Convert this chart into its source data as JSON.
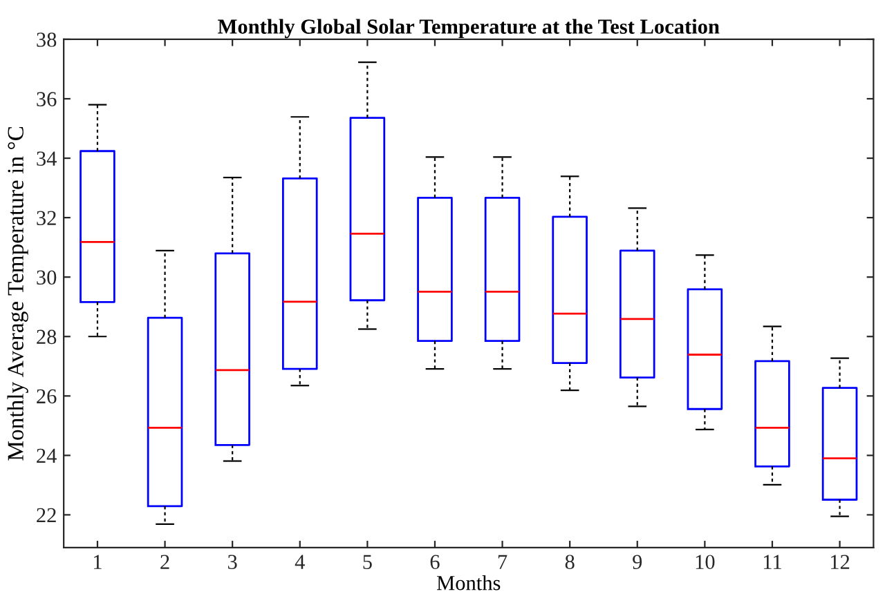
{
  "chart_data": {
    "type": "box",
    "title": "Monthly Global Solar Temperature at the Test Location",
    "xlabel": "Months",
    "ylabel": "Monthly Average Temperature in °C",
    "categories": [
      "1",
      "2",
      "3",
      "4",
      "5",
      "6",
      "7",
      "8",
      "9",
      "10",
      "11",
      "12"
    ],
    "series": [
      {
        "color": "#0000ff",
        "boxes": [
          {
            "low": 28.0,
            "q1": 29.16,
            "median": 31.18,
            "q3": 34.24,
            "high": 35.8
          },
          {
            "low": 21.69,
            "q1": 22.29,
            "median": 24.93,
            "q3": 28.63,
            "high": 30.89
          },
          {
            "low": 23.81,
            "q1": 24.35,
            "median": 26.87,
            "q3": 30.8,
            "high": 33.35
          },
          {
            "low": 26.35,
            "q1": 26.91,
            "median": 29.17,
            "q3": 33.32,
            "high": 35.39
          },
          {
            "low": 28.25,
            "q1": 29.22,
            "median": 31.46,
            "q3": 35.36,
            "high": 37.23
          },
          {
            "low": 26.91,
            "q1": 27.85,
            "median": 29.51,
            "q3": 32.67,
            "high": 34.04
          },
          {
            "low": 26.91,
            "q1": 27.85,
            "median": 29.51,
            "q3": 32.67,
            "high": 34.04
          },
          {
            "low": 26.19,
            "q1": 27.11,
            "median": 28.77,
            "q3": 32.03,
            "high": 33.39
          },
          {
            "low": 25.65,
            "q1": 26.62,
            "median": 28.59,
            "q3": 30.89,
            "high": 32.32
          },
          {
            "low": 24.87,
            "q1": 25.56,
            "median": 27.39,
            "q3": 29.59,
            "high": 30.74
          },
          {
            "low": 23.01,
            "q1": 23.63,
            "median": 24.93,
            "q3": 27.17,
            "high": 28.34
          },
          {
            "low": 21.95,
            "q1": 22.51,
            "median": 23.9,
            "q3": 26.27,
            "high": 27.27
          }
        ]
      }
    ],
    "ylim": [
      20.9,
      38
    ],
    "yticks": [
      22,
      24,
      26,
      28,
      30,
      32,
      34,
      36,
      38
    ],
    "grid": false
  }
}
